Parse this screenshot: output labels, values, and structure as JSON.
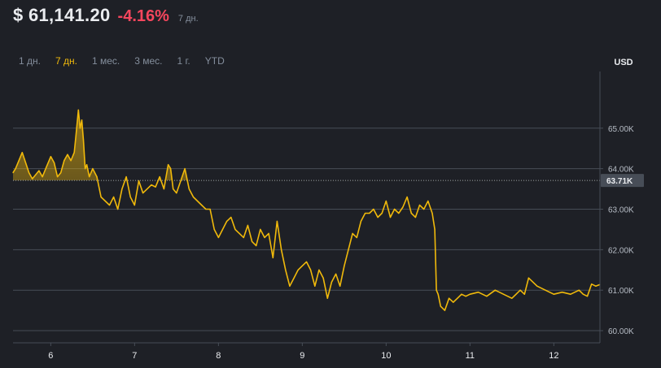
{
  "header": {
    "price": "$ 61,141.20",
    "change": "-4.16%",
    "period": "7 дн."
  },
  "tabs": [
    {
      "label": "1 дн.",
      "active": false
    },
    {
      "label": "7 дн.",
      "active": true
    },
    {
      "label": "1 мес.",
      "active": false
    },
    {
      "label": "3 мес.",
      "active": false
    },
    {
      "label": "1 г.",
      "active": false
    },
    {
      "label": "YTD",
      "active": false
    }
  ],
  "colors": {
    "line": "#f0b90b",
    "grid": "#474d57",
    "negative": "#f6465d",
    "reference_line": "#9aa0aa"
  },
  "chart_data": {
    "type": "line",
    "unit_label": "USD",
    "reference_value": 63710,
    "reference_label": "63.71K",
    "ylim": [
      59700,
      66400
    ],
    "yticks": [
      60000,
      61000,
      62000,
      63000,
      64000,
      65000
    ],
    "ytick_labels": [
      "60.00K",
      "61.00K",
      "62.00K",
      "63.00K",
      "64.00K",
      "65.00K"
    ],
    "xlim": [
      5.55,
      12.55
    ],
    "xticks": [
      6,
      7,
      8,
      9,
      10,
      11,
      12
    ],
    "xtick_labels": [
      "6",
      "7",
      "8",
      "9",
      "10",
      "11",
      "12"
    ],
    "grid": true,
    "series": [
      {
        "x": [
          5.55,
          5.58,
          5.62,
          5.66,
          5.7,
          5.74,
          5.78,
          5.82,
          5.86,
          5.9,
          5.95,
          6.0,
          6.04,
          6.08,
          6.12,
          6.16,
          6.2,
          6.24,
          6.28,
          6.3,
          6.33,
          6.35,
          6.37,
          6.39,
          6.41,
          6.43,
          6.46,
          6.5,
          6.55,
          6.6,
          6.65,
          6.7,
          6.75,
          6.8,
          6.85,
          6.9,
          6.95,
          7.0,
          7.05,
          7.1,
          7.15,
          7.2,
          7.25,
          7.3,
          7.35,
          7.4,
          7.43,
          7.46,
          7.5,
          7.55,
          7.6,
          7.65,
          7.7,
          7.75,
          7.8,
          7.85,
          7.9,
          7.95,
          8.0,
          8.05,
          8.1,
          8.15,
          8.2,
          8.25,
          8.3,
          8.35,
          8.4,
          8.45,
          8.5,
          8.55,
          8.6,
          8.65,
          8.7,
          8.75,
          8.8,
          8.85,
          8.9,
          8.95,
          9.0,
          9.05,
          9.1,
          9.15,
          9.2,
          9.25,
          9.3,
          9.35,
          9.4,
          9.45,
          9.5,
          9.55,
          9.6,
          9.65,
          9.7,
          9.75,
          9.8,
          9.85,
          9.9,
          9.95,
          10.0,
          10.05,
          10.1,
          10.15,
          10.2,
          10.25,
          10.3,
          10.35,
          10.4,
          10.45,
          10.5,
          10.55,
          10.58,
          10.6,
          10.62,
          10.65,
          10.7,
          10.75,
          10.8,
          10.85,
          10.9,
          10.95,
          11.0,
          11.1,
          11.2,
          11.3,
          11.4,
          11.5,
          11.6,
          11.65,
          11.7,
          11.8,
          11.9,
          12.0,
          12.1,
          12.2,
          12.3,
          12.35,
          12.4,
          12.45,
          12.5,
          12.55
        ],
        "values": [
          63900,
          64000,
          64200,
          64400,
          64150,
          63900,
          63750,
          63850,
          63950,
          63800,
          64050,
          64300,
          64150,
          63800,
          63900,
          64200,
          64350,
          64200,
          64400,
          64800,
          65450,
          65000,
          65200,
          64700,
          64000,
          64100,
          63800,
          64000,
          63800,
          63300,
          63200,
          63100,
          63300,
          63000,
          63500,
          63800,
          63300,
          63100,
          63700,
          63400,
          63500,
          63600,
          63550,
          63800,
          63500,
          64100,
          64000,
          63500,
          63400,
          63700,
          64000,
          63500,
          63300,
          63200,
          63100,
          63000,
          63000,
          62500,
          62300,
          62500,
          62700,
          62800,
          62500,
          62400,
          62300,
          62600,
          62200,
          62100,
          62500,
          62300,
          62400,
          61800,
          62700,
          62000,
          61500,
          61100,
          61300,
          61500,
          61600,
          61700,
          61500,
          61100,
          61500,
          61300,
          60800,
          61200,
          61400,
          61100,
          61600,
          62000,
          62400,
          62300,
          62700,
          62900,
          62900,
          63000,
          62800,
          62900,
          63200,
          62800,
          63000,
          62900,
          63050,
          63300,
          62900,
          62800,
          63100,
          63000,
          63200,
          62900,
          62500,
          61000,
          60900,
          60600,
          60500,
          60800,
          60700,
          60800,
          60900,
          60850,
          60900,
          60950,
          60850,
          61000,
          60900,
          60800,
          61000,
          60900,
          61300,
          61100,
          61000,
          60900,
          60950,
          60900,
          61000,
          60900,
          60850,
          61150,
          61100,
          61140
        ]
      }
    ]
  }
}
